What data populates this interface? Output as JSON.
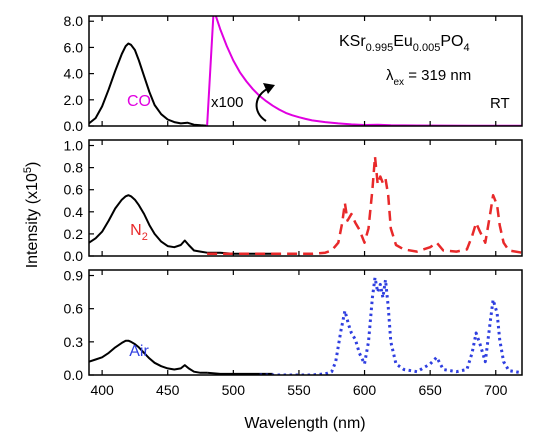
{
  "chart_data": {
    "type": "line",
    "xlabel": "Wavelength (nm)",
    "ylabel": "Intensity (x10",
    "ylabel_sup": "5",
    "ylabel_end": ")",
    "xlim": [
      390,
      720
    ],
    "x_ticks": [
      400,
      450,
      500,
      550,
      600,
      650,
      700
    ],
    "panels": [
      {
        "label": "CO",
        "label_color": "#e000e0",
        "ylim": [
          0,
          8.4
        ],
        "y_ticks": [
          "8.0",
          "6.0",
          "4.0",
          "2.0",
          "0.0"
        ],
        "y_tick_values": [
          8,
          6,
          4,
          2,
          0
        ],
        "series": [
          {
            "color": "#000000",
            "style": "solid",
            "x": [
              390,
              395,
              400,
              405,
              410,
              415,
              418,
              420,
              422,
              425,
              428,
              432,
              436,
              440,
              445,
              450,
              455,
              460,
              465,
              470,
              475,
              480
            ],
            "y": [
              0.2,
              0.6,
              1.5,
              2.8,
              4.2,
              5.5,
              6.1,
              6.3,
              6.2,
              5.8,
              5.0,
              3.8,
              2.6,
              1.6,
              0.9,
              0.5,
              0.3,
              0.2,
              0.25,
              0.1,
              0.05,
              0.02
            ]
          },
          {
            "color": "#e000e0",
            "style": "solid",
            "x": [
              480,
              485,
              490,
              495,
              500,
              505,
              510,
              515,
              520,
              525,
              530,
              535,
              540,
              545,
              550,
              555,
              560,
              570,
              580,
              590,
              600,
              610,
              620,
              640,
              660,
              680,
              700,
              720
            ],
            "y": [
              0.01,
              8.9,
              7.4,
              6.1,
              5.0,
              4.1,
              3.4,
              2.8,
              2.3,
              1.9,
              1.55,
              1.25,
              1.0,
              0.82,
              0.67,
              0.54,
              0.43,
              0.3,
              0.2,
              0.12,
              0.08,
              0.1,
              0.06,
              0.04,
              0.03,
              0.02,
              0.02,
              0.02
            ]
          }
        ],
        "annotations": {
          "formula": {
            "base": "KSr",
            "s1": "0.995",
            "m1": "Eu",
            "s2": "0.005",
            "m2": "PO",
            "s3": "4"
          },
          "excitation": {
            "symbol": "λ",
            "sub": "ex",
            "rest": " = 319 nm"
          },
          "temperature": "RT",
          "scale_note": "x100"
        }
      },
      {
        "label": "N",
        "label_sub": "2",
        "label_color": "#e8292a",
        "ylim": [
          0,
          1.05
        ],
        "y_ticks": [
          "1.0",
          "0.8",
          "0.6",
          "0.4",
          "0.2",
          "0.0"
        ],
        "y_tick_values": [
          1.0,
          0.8,
          0.6,
          0.4,
          0.2,
          0.0
        ],
        "series": [
          {
            "color": "#000000",
            "style": "solid",
            "x": [
              390,
              395,
              400,
              405,
              410,
              415,
              418,
              420,
              422,
              425,
              428,
              432,
              436,
              440,
              445,
              450,
              455,
              460,
              463,
              466,
              470,
              475,
              480
            ],
            "y": [
              0.12,
              0.16,
              0.22,
              0.32,
              0.43,
              0.51,
              0.54,
              0.55,
              0.54,
              0.51,
              0.46,
              0.38,
              0.28,
              0.2,
              0.13,
              0.09,
              0.08,
              0.1,
              0.14,
              0.1,
              0.05,
              0.04,
              0.03
            ]
          },
          {
            "color": "#000000",
            "style": "solid",
            "x": [
              480,
              490,
              500,
              510,
              520,
              530
            ],
            "y": [
              0.03,
              0.03,
              0.02,
              0.02,
              0.02,
              0.02
            ]
          },
          {
            "color": "#e8292a",
            "style": "dashed",
            "x": [
              480,
              500,
              520,
              540,
              560,
              570,
              575,
              580,
              583,
              585,
              587,
              590,
              593,
              596,
              600,
              603,
              606,
              608,
              610,
              612,
              614,
              616,
              618,
              620,
              624,
              630,
              640,
              650,
              655,
              660,
              670,
              678,
              682,
              685,
              688,
              692,
              696,
              698,
              701,
              703,
              706,
              710,
              720
            ],
            "y": [
              0.02,
              0.02,
              0.02,
              0.02,
              0.02,
              0.03,
              0.05,
              0.12,
              0.3,
              0.48,
              0.32,
              0.38,
              0.3,
              0.24,
              0.12,
              0.25,
              0.6,
              0.9,
              0.65,
              0.72,
              0.66,
              0.7,
              0.55,
              0.25,
              0.1,
              0.06,
              0.04,
              0.08,
              0.12,
              0.05,
              0.04,
              0.06,
              0.18,
              0.3,
              0.22,
              0.12,
              0.4,
              0.55,
              0.46,
              0.28,
              0.12,
              0.05,
              0.03
            ]
          }
        ]
      },
      {
        "label": "Air",
        "label_color": "#2f3fe0",
        "ylim": [
          0,
          0.95
        ],
        "y_ticks": [
          "0.9",
          "0.6",
          "0.3",
          "0.0"
        ],
        "y_tick_values": [
          0.9,
          0.6,
          0.3,
          0.0
        ],
        "series": [
          {
            "color": "#000000",
            "style": "solid",
            "x": [
              390,
              395,
              400,
              405,
              410,
              415,
              418,
              420,
              422,
              425,
              428,
              432,
              436,
              440,
              445,
              450,
              455,
              460,
              463,
              466,
              470,
              475,
              480
            ],
            "y": [
              0.12,
              0.14,
              0.16,
              0.2,
              0.25,
              0.29,
              0.31,
              0.31,
              0.3,
              0.28,
              0.25,
              0.2,
              0.15,
              0.11,
              0.08,
              0.06,
              0.05,
              0.06,
              0.09,
              0.06,
              0.03,
              0.02,
              0.02
            ]
          },
          {
            "color": "#000000",
            "style": "solid",
            "x": [
              480,
              490,
              500,
              510,
              520,
              530
            ],
            "y": [
              0.02,
              0.01,
              0.01,
              0.01,
              0.01,
              0.01
            ]
          },
          {
            "color": "#2f3fe0",
            "style": "dotted",
            "x": [
              520,
              540,
              560,
              570,
              575,
              578,
              582,
              585,
              588,
              590,
              593,
              596,
              600,
              603,
              606,
              608,
              610,
              612,
              614,
              616,
              618,
              620,
              624,
              630,
              640,
              650,
              655,
              660,
              670,
              678,
              682,
              685,
              688,
              692,
              696,
              698,
              701,
              703,
              706,
              710,
              720
            ],
            "y": [
              0.0,
              0.0,
              0.0,
              0.01,
              0.03,
              0.12,
              0.4,
              0.58,
              0.45,
              0.38,
              0.32,
              0.2,
              0.1,
              0.3,
              0.7,
              0.88,
              0.75,
              0.82,
              0.7,
              0.86,
              0.62,
              0.3,
              0.1,
              0.05,
              0.03,
              0.1,
              0.16,
              0.05,
              0.03,
              0.05,
              0.2,
              0.38,
              0.28,
              0.12,
              0.5,
              0.68,
              0.56,
              0.32,
              0.12,
              0.04,
              0.02
            ]
          }
        ]
      }
    ]
  }
}
